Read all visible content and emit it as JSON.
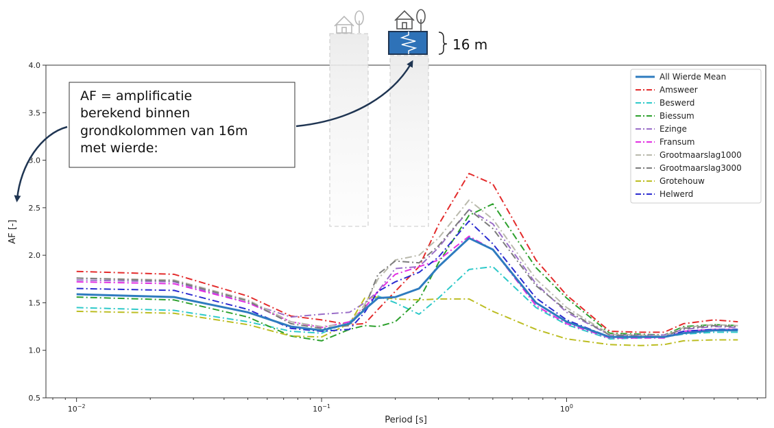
{
  "chart_data": {
    "type": "line",
    "title": "",
    "xlabel": "Period [s]",
    "ylabel": "AF [-]",
    "xscale": "log",
    "xlim": [
      0.0075,
      6.5
    ],
    "ylim": [
      0.5,
      4.0
    ],
    "yticks": [
      "0.5",
      "1.0",
      "1.5",
      "2.0",
      "2.5",
      "3.0",
      "3.5",
      "4.0"
    ],
    "xticks": [
      {
        "value": 0.01,
        "base": "10",
        "exp": "−2"
      },
      {
        "value": 0.1,
        "base": "10",
        "exp": "−1"
      },
      {
        "value": 1,
        "base": "10",
        "exp": "0"
      }
    ],
    "grid": false,
    "legend_position": "top-right",
    "x": [
      0.01,
      0.025,
      0.05,
      0.075,
      0.1,
      0.13,
      0.15,
      0.17,
      0.2,
      0.25,
      0.3,
      0.4,
      0.5,
      0.75,
      1.0,
      1.5,
      2.0,
      2.5,
      3.0,
      4.0,
      5.0
    ],
    "series": [
      {
        "name": "All Wierde Mean",
        "color": "#2e7bbf",
        "style": "solid",
        "width": 3,
        "values": [
          1.59,
          1.56,
          1.4,
          1.25,
          1.21,
          1.28,
          1.43,
          1.55,
          1.56,
          1.65,
          1.88,
          2.18,
          2.06,
          1.5,
          1.3,
          1.14,
          1.14,
          1.14,
          1.18,
          1.21,
          1.21
        ]
      },
      {
        "name": "Amsweer",
        "color": "#e32b2b",
        "style": "dashdot",
        "width": 2,
        "values": [
          1.83,
          1.8,
          1.57,
          1.36,
          1.32,
          1.27,
          1.28,
          1.43,
          1.62,
          1.88,
          2.32,
          2.86,
          2.75,
          1.95,
          1.58,
          1.2,
          1.19,
          1.19,
          1.28,
          1.32,
          1.3
        ]
      },
      {
        "name": "Beswerd",
        "color": "#2ec9c9",
        "style": "dashdot",
        "width": 2,
        "values": [
          1.45,
          1.42,
          1.3,
          1.2,
          1.18,
          1.3,
          1.42,
          1.57,
          1.5,
          1.38,
          1.55,
          1.85,
          1.88,
          1.45,
          1.27,
          1.12,
          1.13,
          1.14,
          1.17,
          1.19,
          1.19
        ]
      },
      {
        "name": "Biessum",
        "color": "#2ca02c",
        "style": "dashdot",
        "width": 2,
        "values": [
          1.56,
          1.53,
          1.35,
          1.15,
          1.1,
          1.22,
          1.26,
          1.25,
          1.3,
          1.53,
          1.92,
          2.42,
          2.54,
          1.87,
          1.55,
          1.18,
          1.17,
          1.16,
          1.25,
          1.27,
          1.26
        ]
      },
      {
        "name": "Ezinge",
        "color": "#9a6ec8",
        "style": "dashdot",
        "width": 2,
        "values": [
          1.74,
          1.72,
          1.5,
          1.35,
          1.38,
          1.4,
          1.5,
          1.62,
          1.86,
          1.88,
          2.08,
          2.48,
          2.33,
          1.7,
          1.4,
          1.16,
          1.16,
          1.16,
          1.22,
          1.25,
          1.24
        ]
      },
      {
        "name": "Fransum",
        "color": "#e22ee2",
        "style": "dashdot",
        "width": 2,
        "values": [
          1.72,
          1.7,
          1.5,
          1.3,
          1.24,
          1.3,
          1.45,
          1.62,
          1.8,
          1.88,
          1.95,
          2.2,
          2.06,
          1.47,
          1.28,
          1.13,
          1.13,
          1.13,
          1.2,
          1.22,
          1.22
        ]
      },
      {
        "name": "Grootmaarslag1000",
        "color": "#b9b9ac",
        "style": "dashdot",
        "width": 2,
        "values": [
          1.76,
          1.74,
          1.53,
          1.3,
          1.25,
          1.28,
          1.48,
          1.75,
          1.95,
          2.0,
          2.18,
          2.58,
          2.38,
          1.75,
          1.45,
          1.17,
          1.16,
          1.15,
          1.24,
          1.27,
          1.26
        ]
      },
      {
        "name": "Grootmaarslag3000",
        "color": "#7c7c7c",
        "style": "dashdot",
        "width": 2,
        "values": [
          1.76,
          1.73,
          1.52,
          1.28,
          1.23,
          1.26,
          1.45,
          1.8,
          1.94,
          1.92,
          2.1,
          2.48,
          2.28,
          1.68,
          1.42,
          1.16,
          1.15,
          1.14,
          1.23,
          1.26,
          1.25
        ]
      },
      {
        "name": "Grotehouw",
        "color": "#bcbd22",
        "style": "dashdot",
        "width": 2,
        "values": [
          1.41,
          1.39,
          1.27,
          1.15,
          1.14,
          1.28,
          1.55,
          1.56,
          1.54,
          1.53,
          1.54,
          1.54,
          1.41,
          1.22,
          1.12,
          1.06,
          1.05,
          1.06,
          1.1,
          1.11,
          1.11
        ]
      },
      {
        "name": "Helwerd",
        "color": "#2a2ad0",
        "style": "dashdot",
        "width": 2,
        "values": [
          1.65,
          1.63,
          1.43,
          1.23,
          1.2,
          1.22,
          1.4,
          1.62,
          1.72,
          1.82,
          1.98,
          2.36,
          2.12,
          1.55,
          1.32,
          1.14,
          1.14,
          1.14,
          1.2,
          1.22,
          1.22
        ]
      }
    ]
  },
  "annotations": {
    "callout_lines": [
      "AF = amplificatie",
      "berekend binnen",
      "grondkolommen van 16m",
      "met wierde:"
    ],
    "depth_label": "16 m"
  },
  "icons": {
    "house": "house-icon",
    "tree": "tree-icon",
    "spring": "spring-icon"
  }
}
